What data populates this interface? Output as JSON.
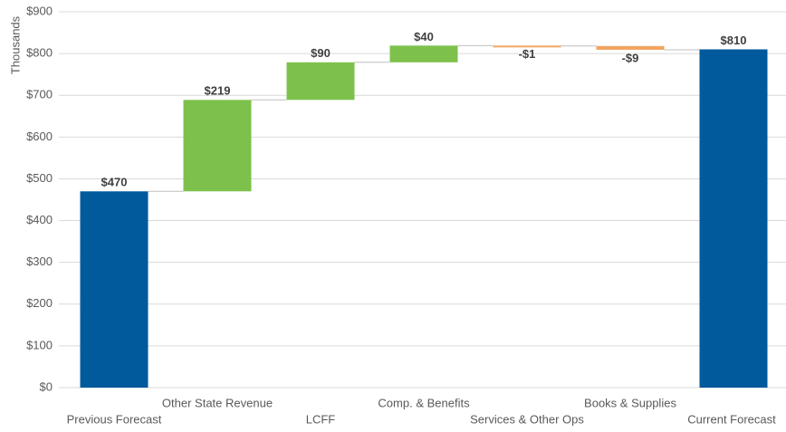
{
  "chart_data": {
    "type": "waterfall",
    "y_axis_label": "Thousands",
    "categories": [
      "Previous Forecast",
      "Other State Revenue",
      "LCFF",
      "Comp. & Benefits",
      "Services & Other Ops",
      "Books & Supplies",
      "Current Forecast"
    ],
    "values": [
      470,
      219,
      90,
      40,
      -1,
      -9,
      810
    ],
    "value_labels": [
      "$470",
      "$219",
      "$90",
      "$40",
      "-$1",
      "-$9",
      "$810"
    ],
    "is_total": [
      true,
      false,
      false,
      false,
      false,
      false,
      true
    ],
    "colors": {
      "total": "#005a9c",
      "increase": "#7dc14c",
      "decrease": "#f2a561"
    },
    "ylim": [
      0,
      900
    ],
    "yticks": [
      {
        "value": 0,
        "label": "$0"
      },
      {
        "value": 100,
        "label": "$100"
      },
      {
        "value": 200,
        "label": "$200"
      },
      {
        "value": 300,
        "label": "$300"
      },
      {
        "value": 400,
        "label": "$400"
      },
      {
        "value": 500,
        "label": "$500"
      },
      {
        "value": 600,
        "label": "$600"
      },
      {
        "value": 700,
        "label": "$700"
      },
      {
        "value": 800,
        "label": "$800"
      },
      {
        "value": 900,
        "label": "$900"
      }
    ],
    "grid": true
  }
}
